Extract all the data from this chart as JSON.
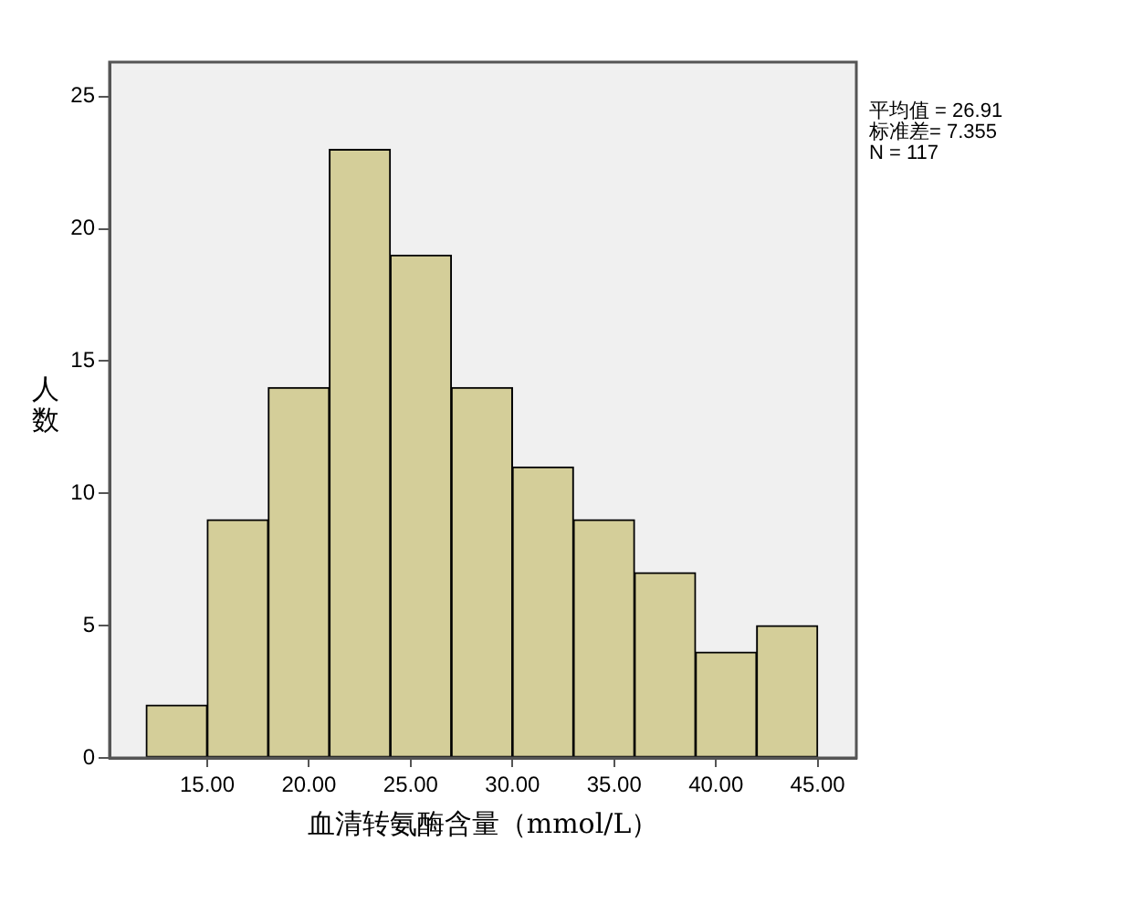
{
  "chart_data": {
    "type": "histogram",
    "xlabel": "血清转氨酶含量（mmol/L）",
    "ylabel": "人数",
    "bins": [
      12,
      15,
      18,
      21,
      24,
      27,
      30,
      33,
      36,
      39,
      42,
      45
    ],
    "values": [
      2,
      9,
      14,
      23,
      19,
      14,
      11,
      9,
      7,
      4,
      5
    ],
    "color": "#d4ce99",
    "xlim": [
      10.2,
      46.9
    ],
    "xticks": [
      {
        "value": 15,
        "label": "15.00"
      },
      {
        "value": 20,
        "label": "20.00"
      },
      {
        "value": 25,
        "label": "25.00"
      },
      {
        "value": 30,
        "label": "30.00"
      },
      {
        "value": 35,
        "label": "35.00"
      },
      {
        "value": 40,
        "label": "40.00"
      },
      {
        "value": 45,
        "label": "45.00"
      }
    ],
    "ylim": [
      0,
      26.3
    ],
    "yticks": [
      0,
      5,
      10,
      15,
      20,
      25
    ],
    "grid": false,
    "legend": false,
    "annotations": [
      "平均值 = 26.91",
      "标准差= 7.355",
      "N = 117"
    ]
  }
}
